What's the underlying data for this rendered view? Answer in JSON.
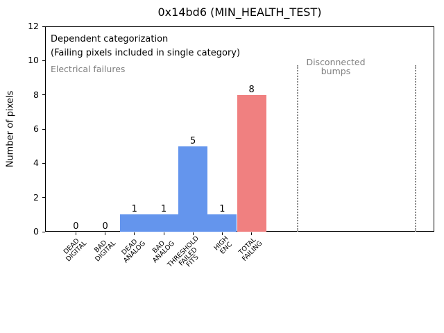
{
  "title": "0x14bd6 (MIN_HEALTH_TEST)",
  "ylabel": "Number of pixels",
  "annotations": {
    "dependent": "Dependent categorization\n(Failing pixels included in single category)",
    "electrical": "Electrical failures",
    "disconnected": "Disconnected\nbumps"
  },
  "colors": {
    "bar_blue": "#6495ed",
    "bar_red": "#f08080",
    "gray_text": "#7f7f7f",
    "dotted_line": "#8a8a8a",
    "axis": "#000000"
  },
  "chart_data": {
    "type": "bar",
    "title": "0x14bd6 (MIN_HEALTH_TEST)",
    "xlabel": "",
    "ylabel": "Number of pixels",
    "ylim": [
      0,
      12
    ],
    "yticks": [
      0,
      2,
      4,
      6,
      8,
      10,
      12
    ],
    "grid": false,
    "legend": null,
    "categories": [
      "DEAD\nDIGITAL",
      "BAD\nDIGITAL",
      "DEAD\nANALOG",
      "BAD\nANALOG",
      "THRESHOLD\nFAILED\nFITS",
      "HIGH\nENC",
      "TOTAL\nFAILING"
    ],
    "values": [
      0,
      0,
      1,
      1,
      5,
      1,
      8
    ],
    "bar_labels": [
      "0",
      "0",
      "1",
      "1",
      "5",
      "1",
      "8"
    ],
    "bar_colors": [
      "#6495ed",
      "#6495ed",
      "#6495ed",
      "#6495ed",
      "#6495ed",
      "#6495ed",
      "#f08080"
    ],
    "annotations": [
      {
        "text": "Dependent categorization\n(Failing pixels included in single category)",
        "color": "#000000"
      },
      {
        "text": "Electrical failures",
        "color": "#7f7f7f"
      },
      {
        "text": "Disconnected\nbumps",
        "color": "#7f7f7f"
      }
    ],
    "vlines": [
      {
        "style": "dotted",
        "color": "#8a8a8a"
      },
      {
        "style": "dotted",
        "color": "#8a8a8a"
      }
    ]
  }
}
